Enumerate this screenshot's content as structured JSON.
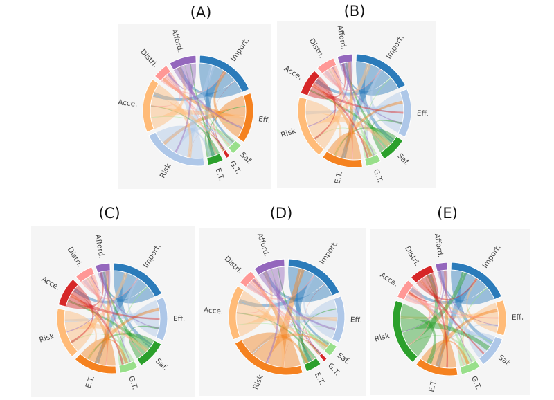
{
  "chart_data": [
    {
      "id": "A",
      "title": "(A)",
      "type": "chord",
      "segments": [
        {
          "label": "Import.",
          "color": "#2b7bba",
          "value": 16
        },
        {
          "label": "Eff.",
          "color": "#f58220",
          "value": 13
        },
        {
          "label": "Saf.",
          "color": "#98df8a",
          "value": 3
        },
        {
          "label": "G.T.",
          "color": "#d62728",
          "value": 1
        },
        {
          "label": "E.T.",
          "color": "#2ca02c",
          "value": 4
        },
        {
          "label": "Risk",
          "color": "#aec7e8",
          "value": 17
        },
        {
          "label": "Acce.",
          "color": "#ffbb78",
          "value": 14
        },
        {
          "label": "Distri.",
          "color": "#ff9896",
          "value": 4
        },
        {
          "label": "Afford.",
          "color": "#9467bd",
          "value": 7
        }
      ]
    },
    {
      "id": "B",
      "title": "(B)",
      "type": "chord",
      "segments": [
        {
          "label": "Import.",
          "color": "#2b7bba",
          "value": 16
        },
        {
          "label": "Eff.",
          "color": "#aec7e8",
          "value": 13
        },
        {
          "label": "Saf.",
          "color": "#2ca02c",
          "value": 7
        },
        {
          "label": "G.T.",
          "color": "#98df8a",
          "value": 4
        },
        {
          "label": "E.T.",
          "color": "#f58220",
          "value": 11
        },
        {
          "label": "Risk",
          "color": "#ffbb78",
          "value": 17
        },
        {
          "label": "Acce.",
          "color": "#d62728",
          "value": 7
        },
        {
          "label": "Distri.",
          "color": "#ff9896",
          "value": 5
        },
        {
          "label": "Afford.",
          "color": "#9467bd",
          "value": 4
        }
      ]
    },
    {
      "id": "C",
      "title": "(C)",
      "type": "chord",
      "segments": [
        {
          "label": "Import.",
          "color": "#2b7bba",
          "value": 16
        },
        {
          "label": "Eff.",
          "color": "#aec7e8",
          "value": 12
        },
        {
          "label": "Saf.",
          "color": "#2ca02c",
          "value": 8
        },
        {
          "label": "G.T.",
          "color": "#98df8a",
          "value": 5
        },
        {
          "label": "E.T.",
          "color": "#f58220",
          "value": 12
        },
        {
          "label": "Risk",
          "color": "#ffbb78",
          "value": 14
        },
        {
          "label": "Acce.",
          "color": "#d62728",
          "value": 8
        },
        {
          "label": "Distri.",
          "color": "#ff9896",
          "value": 5
        },
        {
          "label": "Afford.",
          "color": "#9467bd",
          "value": 4
        }
      ]
    },
    {
      "id": "D",
      "title": "(D)",
      "type": "chord",
      "segments": [
        {
          "label": "Import.",
          "color": "#2b7bba",
          "value": 16
        },
        {
          "label": "Eff.",
          "color": "#aec7e8",
          "value": 12
        },
        {
          "label": "Saf.",
          "color": "#98df8a",
          "value": 3
        },
        {
          "label": "G.T.",
          "color": "#d62728",
          "value": 1
        },
        {
          "label": "E.T.",
          "color": "#2ca02c",
          "value": 4
        },
        {
          "label": "Risk",
          "color": "#f58220",
          "value": 20
        },
        {
          "label": "Acce.",
          "color": "#ffbb78",
          "value": 14
        },
        {
          "label": "Distri.",
          "color": "#ff9896",
          "value": 4
        },
        {
          "label": "Afford.",
          "color": "#9467bd",
          "value": 8
        }
      ]
    },
    {
      "id": "E",
      "title": "(E)",
      "type": "chord",
      "segments": [
        {
          "label": "Import.",
          "color": "#2b7bba",
          "value": 16
        },
        {
          "label": "Eff.",
          "color": "#ffbb78",
          "value": 9
        },
        {
          "label": "Saf.",
          "color": "#aec7e8",
          "value": 8
        },
        {
          "label": "G.T.",
          "color": "#98df8a",
          "value": 5
        },
        {
          "label": "E.T.",
          "color": "#f58220",
          "value": 11
        },
        {
          "label": "Risk",
          "color": "#2ca02c",
          "value": 17
        },
        {
          "label": "Acce.",
          "color": "#ff9896",
          "value": 5
        },
        {
          "label": "Distri.",
          "color": "#d62728",
          "value": 6
        },
        {
          "label": "Afford.",
          "color": "#9467bd",
          "value": 3
        }
      ]
    }
  ]
}
